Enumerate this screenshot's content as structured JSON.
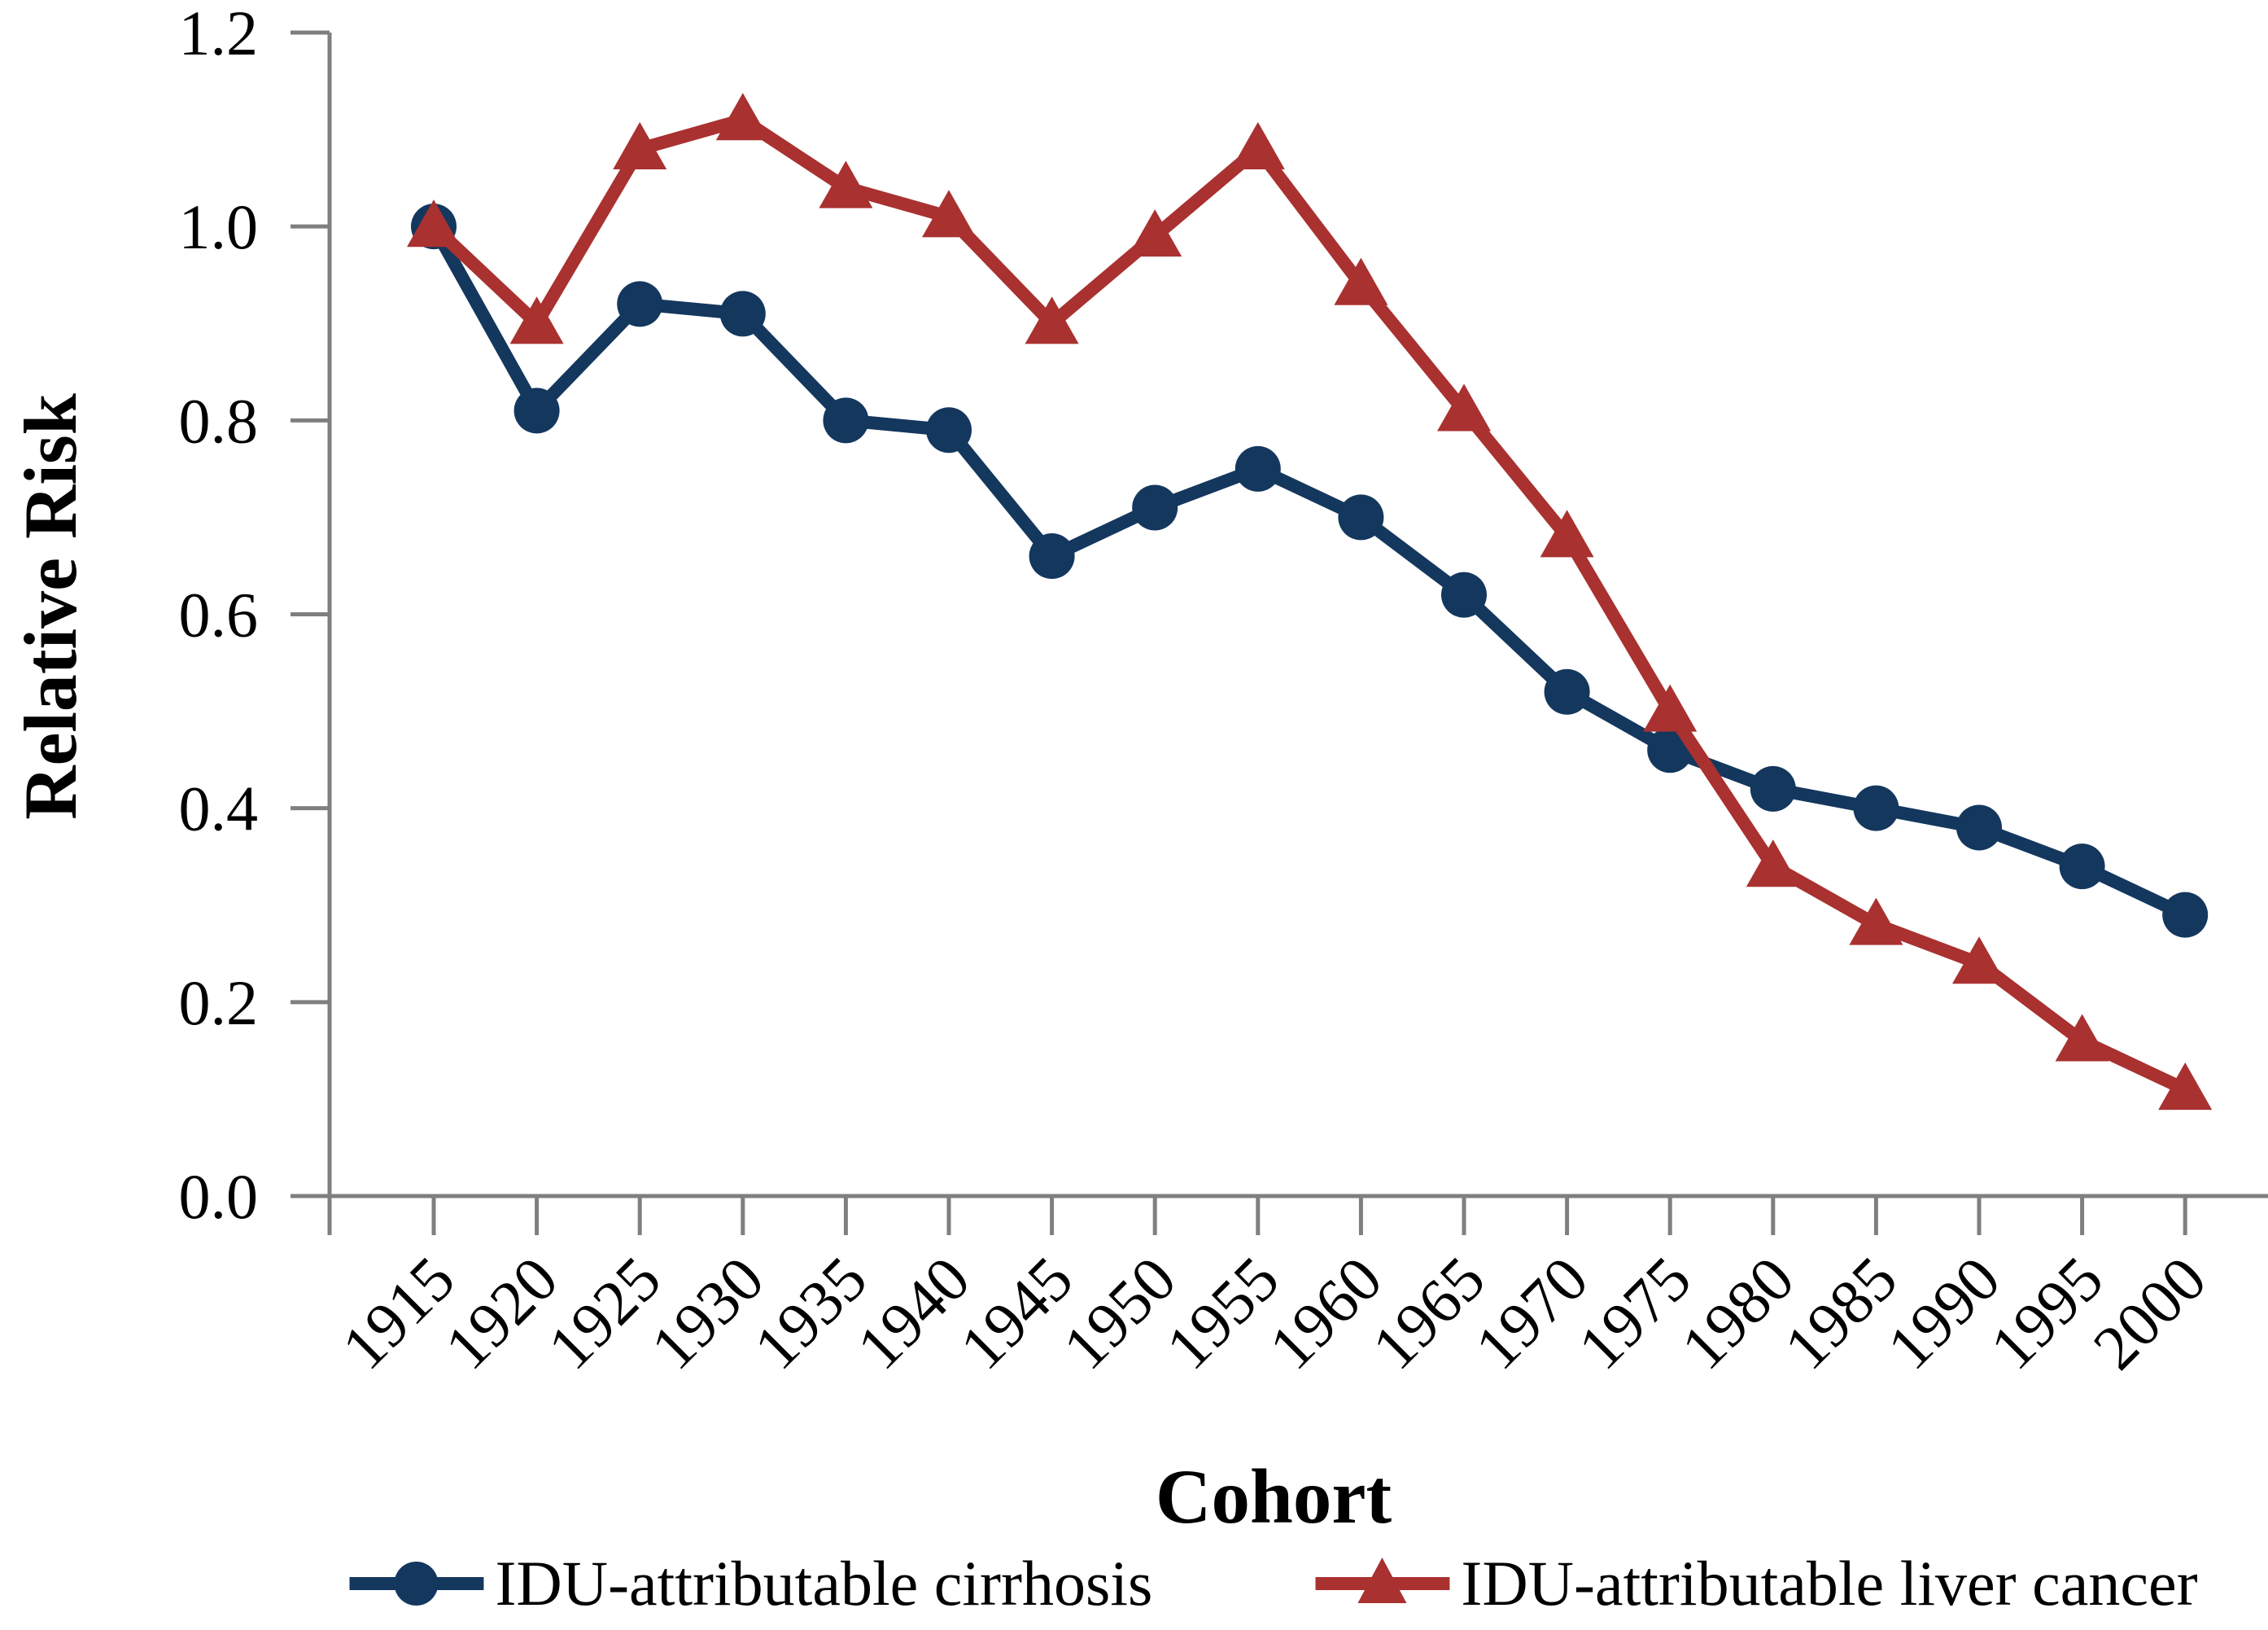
{
  "chart_data": {
    "type": "line",
    "title": "",
    "xlabel": "Cohort",
    "ylabel": "Relative Risk",
    "x": [
      "1915",
      "1920",
      "1925",
      "1930",
      "1935",
      "1940",
      "1945",
      "1950",
      "1955",
      "1960",
      "1965",
      "1970",
      "1975",
      "1980",
      "1985",
      "1990",
      "1995",
      "2000"
    ],
    "series": [
      {
        "name": "IDU-attributable cirrhosis",
        "marker": "circle",
        "color": "#14375E",
        "values": [
          1.0,
          0.81,
          0.92,
          0.91,
          0.8,
          0.79,
          0.66,
          0.71,
          0.75,
          0.7,
          0.62,
          0.52,
          0.46,
          0.42,
          0.4,
          0.38,
          0.34,
          0.29
        ]
      },
      {
        "name": "IDU-attributable liver cancer",
        "marker": "triangle",
        "color": "#A93130",
        "values": [
          1.0,
          0.9,
          1.08,
          1.11,
          1.04,
          1.01,
          0.9,
          0.99,
          1.08,
          0.94,
          0.81,
          0.68,
          0.5,
          0.34,
          0.28,
          0.24,
          0.16,
          0.11
        ]
      }
    ],
    "y_ticks": [
      "0.0",
      "0.2",
      "0.4",
      "0.6",
      "0.8",
      "1.0",
      "1.2"
    ],
    "ylim": [
      0,
      1.2
    ],
    "grid": false,
    "legend_position": "bottom",
    "axis_color": "#7F7F7F"
  }
}
